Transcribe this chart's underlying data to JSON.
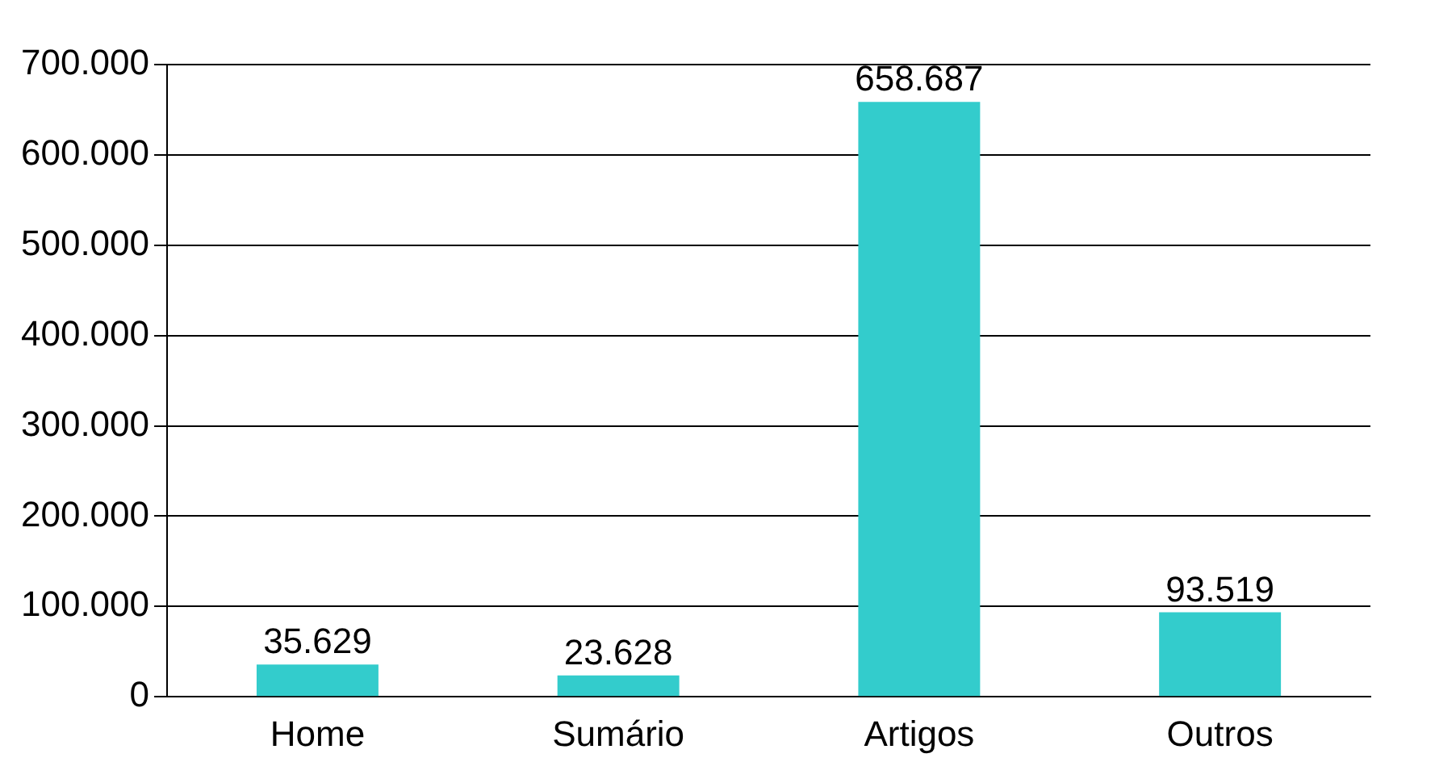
{
  "chart_data": {
    "type": "bar",
    "categories": [
      "Home",
      "Sumário",
      "Artigos",
      "Outros"
    ],
    "values": [
      35629,
      23628,
      658687,
      93519
    ],
    "value_labels": [
      "35.629",
      "23.628",
      "658.687",
      "93.519"
    ],
    "color": "#33cccc",
    "ylim": [
      0,
      700000
    ],
    "yticks": [
      {
        "value": 0,
        "label": "0"
      },
      {
        "value": 100000,
        "label": "100.000"
      },
      {
        "value": 200000,
        "label": "200.000"
      },
      {
        "value": 300000,
        "label": "300.000"
      },
      {
        "value": 400000,
        "label": "400.000"
      },
      {
        "value": 500000,
        "label": "500.000"
      },
      {
        "value": 600000,
        "label": "600.000"
      },
      {
        "value": 700000,
        "label": "700.000"
      }
    ],
    "grid": "y"
  }
}
